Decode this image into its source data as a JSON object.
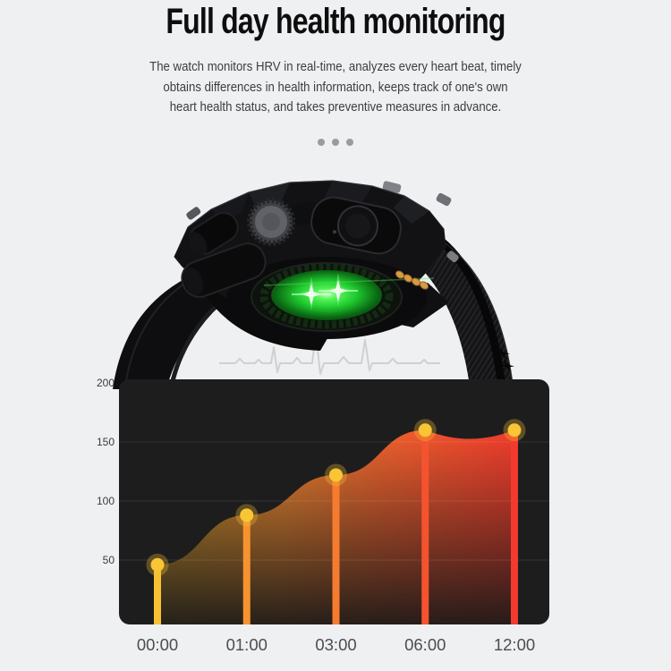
{
  "page": {
    "background": "#eff0f2"
  },
  "header": {
    "title": "Full day health monitoring",
    "description_lines": [
      "The watch monitors HRV in real-time, analyzes every heart beat, timely",
      "obtains differences in health information, keeps track of one's own",
      "heart health status, and takes preventive measures in advance."
    ]
  },
  "carousel": {
    "dot_count": 3,
    "dot_color": "#9b9b9d"
  },
  "product_image": {
    "icons": [
      "watch-crown-icon",
      "watch-button-icon",
      "heart-rate-sensor-icon",
      "charging-contacts-icon",
      "ecg-line-icon"
    ]
  },
  "chart_data": {
    "type": "area",
    "title": "",
    "xlabel": "",
    "ylabel": "",
    "categories": [
      "00:00",
      "01:00",
      "03:00",
      "06:00",
      "12:00"
    ],
    "values": [
      46,
      88,
      122,
      160,
      160
    ],
    "yticks": [
      200,
      150,
      100,
      50
    ],
    "ylim": [
      0,
      200
    ],
    "grid": true,
    "legend": false,
    "colors": {
      "plot_background": "#1e1d1e",
      "gridline": "rgba(255,255,255,0.10)",
      "ytick_text": "#3c3c3e",
      "xtick_text": "#4d4d50",
      "stems": [
        "#f8c133",
        "#f69330",
        "#f57b2f",
        "#f4532e",
        "#f43a2d"
      ],
      "dot": "#f9c535",
      "dot_halo": "rgba(249,197,53,0.30)",
      "area_gradient": [
        {
          "offset": 0,
          "color": "#cf9a2a"
        },
        {
          "offset": 0.35,
          "color": "#ec862e"
        },
        {
          "offset": 0.62,
          "color": "#f0632d"
        },
        {
          "offset": 1,
          "color": "#f23d2c"
        }
      ],
      "bottom_fade": "#181818"
    }
  }
}
